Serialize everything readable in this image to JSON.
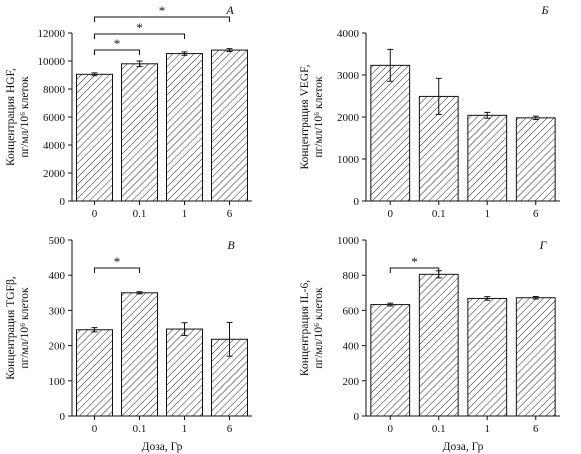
{
  "chart_data": [
    {
      "type": "bar",
      "panel_label": "А",
      "ylabel_lines": [
        "Концентрация HGF,",
        "пг/мл/10⁶ клеток"
      ],
      "xlabel": "",
      "categories": [
        "0",
        "0.1",
        "1",
        "6"
      ],
      "values": [
        9050,
        9800,
        10530,
        10780
      ],
      "errors": [
        100,
        200,
        120,
        100
      ],
      "ylim": [
        0,
        12000
      ],
      "yticks": [
        0,
        2000,
        4000,
        6000,
        8000,
        10000,
        12000
      ],
      "significance": [
        {
          "from": "0",
          "to": "0.1",
          "label": "*"
        },
        {
          "from": "0",
          "to": "1",
          "label": "*"
        },
        {
          "from": "0",
          "to": "6",
          "label": "*"
        }
      ]
    },
    {
      "type": "bar",
      "panel_label": "Б",
      "ylabel_lines": [
        "Концентрация VEGF,",
        "пг/мл/10⁶ клеток"
      ],
      "xlabel": "",
      "categories": [
        "0",
        "0.1",
        "1",
        "6"
      ],
      "values": [
        3230,
        2490,
        2040,
        1980
      ],
      "errors": [
        380,
        430,
        70,
        40
      ],
      "ylim": [
        0,
        4000
      ],
      "yticks": [
        0,
        1000,
        2000,
        3000,
        4000
      ],
      "significance": []
    },
    {
      "type": "bar",
      "panel_label": "В",
      "ylabel_lines": [
        "Концентрация TGFβ,",
        "пг/мл/10⁶ клеток"
      ],
      "xlabel": "Доза, Гр",
      "categories": [
        "0",
        "0.1",
        "1",
        "6"
      ],
      "values": [
        245,
        350,
        247,
        218
      ],
      "errors": [
        6,
        3,
        18,
        48
      ],
      "ylim": [
        0,
        500
      ],
      "yticks": [
        0,
        100,
        200,
        300,
        400,
        500
      ],
      "significance": [
        {
          "from": "0",
          "to": "0.1",
          "label": "*"
        }
      ]
    },
    {
      "type": "bar",
      "panel_label": "Г",
      "ylabel_lines": [
        "Концентрация IL-6,",
        "пг/мл/10⁶ клеток"
      ],
      "xlabel": "Доза, Гр",
      "categories": [
        "0",
        "0.1",
        "1",
        "6"
      ],
      "values": [
        633,
        805,
        668,
        672
      ],
      "errors": [
        8,
        20,
        10,
        7
      ],
      "ylim": [
        0,
        1000
      ],
      "yticks": [
        0,
        200,
        400,
        600,
        800,
        1000
      ],
      "significance": [
        {
          "from": "0",
          "to": "0.1",
          "label": "*"
        }
      ]
    }
  ]
}
